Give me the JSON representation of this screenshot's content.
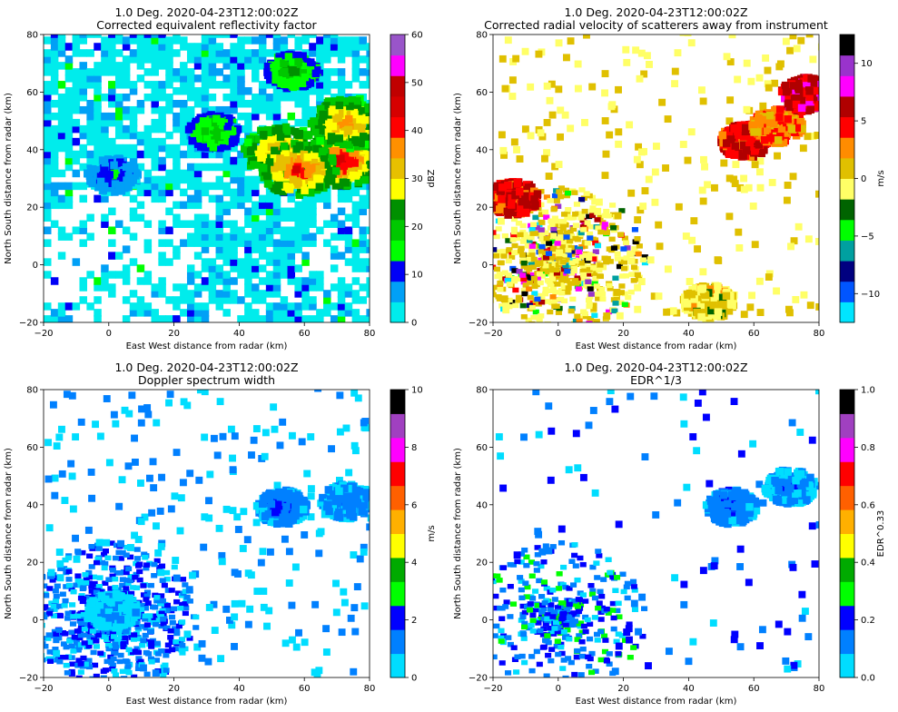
{
  "colors": {
    "reflectivity_scale": [
      "#00ecec",
      "#01a0f6",
      "#0000f6",
      "#00ff00",
      "#00c800",
      "#009000",
      "#ffff00",
      "#e7c000",
      "#ff9000",
      "#ff0000",
      "#d60000",
      "#c00000",
      "#ff00ff",
      "#9955c9"
    ],
    "velocity_scale": [
      "#00e5ff",
      "#0055ff",
      "#000080",
      "#00a0a0",
      "#00ff00",
      "#006400",
      "#ffff66",
      "#e0c000",
      "#ff8c00",
      "#ff0000",
      "#b00000",
      "#ff00ff",
      "#9933cc",
      "#000000"
    ],
    "width_scale": [
      "#00ddff",
      "#0080ff",
      "#0000ff",
      "#00ff00",
      "#00aa00",
      "#ffff00",
      "#ffb000",
      "#ff6000",
      "#ff0000",
      "#ff00ff",
      "#a040c0",
      "#000000"
    ]
  },
  "chart_data": [
    {
      "type": "heatmap",
      "title_line1": "1.0 Deg. 2020-04-23T12:00:02Z",
      "title_line2": "Corrected equivalent reflectivity factor",
      "xlabel": "East West distance from radar (km)",
      "ylabel": "North South distance from radar (km)",
      "xlim": [
        -20,
        80
      ],
      "ylim": [
        -20,
        80
      ],
      "xticks": [
        "−20",
        "0",
        "20",
        "40",
        "60",
        "80"
      ],
      "yticks": [
        "−20",
        "0",
        "20",
        "40",
        "60",
        "80"
      ],
      "colorbar": {
        "label": "dBZ",
        "min": 0,
        "max": 60,
        "ticks": [
          "0",
          "10",
          "20",
          "30",
          "40",
          "50",
          "60"
        ],
        "palette": "reflectivity_scale"
      },
      "field": "reflectivity",
      "storm_cells": [
        {
          "x": 52,
          "y": 38,
          "value": 40
        },
        {
          "x": 70,
          "y": 35,
          "value": 47
        },
        {
          "x": 57,
          "y": 32,
          "value": 44
        },
        {
          "x": 72,
          "y": 48,
          "value": 38
        },
        {
          "x": 55,
          "y": 66,
          "value": 25
        },
        {
          "x": 31,
          "y": 45,
          "value": 22
        },
        {
          "x": 0,
          "y": 30,
          "value": 12
        }
      ]
    },
    {
      "type": "heatmap",
      "title_line1": "1.0 Deg. 2020-04-23T12:00:02Z",
      "title_line2": "Corrected radial velocity of scatterers away from instrument",
      "xlabel": "East West distance from radar (km)",
      "ylabel": "North South distance from radar (km)",
      "xlim": [
        -20,
        80
      ],
      "ylim": [
        -20,
        80
      ],
      "xticks": [
        "−20",
        "0",
        "20",
        "40",
        "60",
        "80"
      ],
      "yticks": [
        "−20",
        "0",
        "20",
        "40",
        "60",
        "80"
      ],
      "colorbar": {
        "label": "m/s",
        "min": -12.5,
        "max": 12.5,
        "ticks": [
          "−10",
          "−5",
          "0",
          "5",
          "10"
        ],
        "tick_values": [
          -10,
          -5,
          0,
          5,
          10
        ],
        "palette": "velocity_scale"
      },
      "field": "velocity",
      "storm_cells": [
        {
          "x": 56,
          "y": 42,
          "value": 5
        },
        {
          "x": 66,
          "y": 47,
          "value": 3
        },
        {
          "x": 75,
          "y": 58,
          "value": 6
        },
        {
          "x": -15,
          "y": 22,
          "value": 5
        },
        {
          "x": 45,
          "y": -14,
          "value": 0
        }
      ]
    },
    {
      "type": "heatmap",
      "title_line1": "1.0 Deg. 2020-04-23T12:00:02Z",
      "title_line2": "Doppler spectrum width",
      "xlabel": "East West distance from radar (km)",
      "ylabel": "North South distance from radar (km)",
      "xlim": [
        -20,
        80
      ],
      "ylim": [
        -20,
        80
      ],
      "xticks": [
        "−20",
        "0",
        "20",
        "40",
        "60",
        "80"
      ],
      "yticks": [
        "−20",
        "0",
        "20",
        "40",
        "60",
        "80"
      ],
      "colorbar": {
        "label": "m/s",
        "min": 0,
        "max": 10,
        "ticks": [
          "0",
          "2",
          "4",
          "6",
          "8",
          "10"
        ],
        "palette": "width_scale"
      },
      "field": "width",
      "storm_cells": [
        {
          "x": 52,
          "y": 38,
          "value": 2
        },
        {
          "x": 72,
          "y": 40,
          "value": 1.5
        },
        {
          "x": 0,
          "y": 2,
          "value": 1
        }
      ]
    },
    {
      "type": "heatmap",
      "title_line1": "1.0 Deg. 2020-04-23T12:00:02Z",
      "title_line2": "EDR^1/3",
      "xlabel": "East West distance from radar (km)",
      "ylabel": "North South distance from radar (km)",
      "xlim": [
        -20,
        80
      ],
      "ylim": [
        -20,
        80
      ],
      "xticks": [
        "−20",
        "0",
        "20",
        "40",
        "60",
        "80"
      ],
      "yticks": [
        "−20",
        "0",
        "20",
        "40",
        "60",
        "80"
      ],
      "colorbar": {
        "label": "EDR^0.33",
        "min": 0,
        "max": 1,
        "ticks": [
          "0.0",
          "0.2",
          "0.4",
          "0.6",
          "0.8",
          "1.0"
        ],
        "palette": "width_scale"
      },
      "field": "edr",
      "storm_cells": [
        {
          "x": 52,
          "y": 38,
          "value": 0.2
        },
        {
          "x": 70,
          "y": 45,
          "value": 0.15
        }
      ]
    }
  ]
}
